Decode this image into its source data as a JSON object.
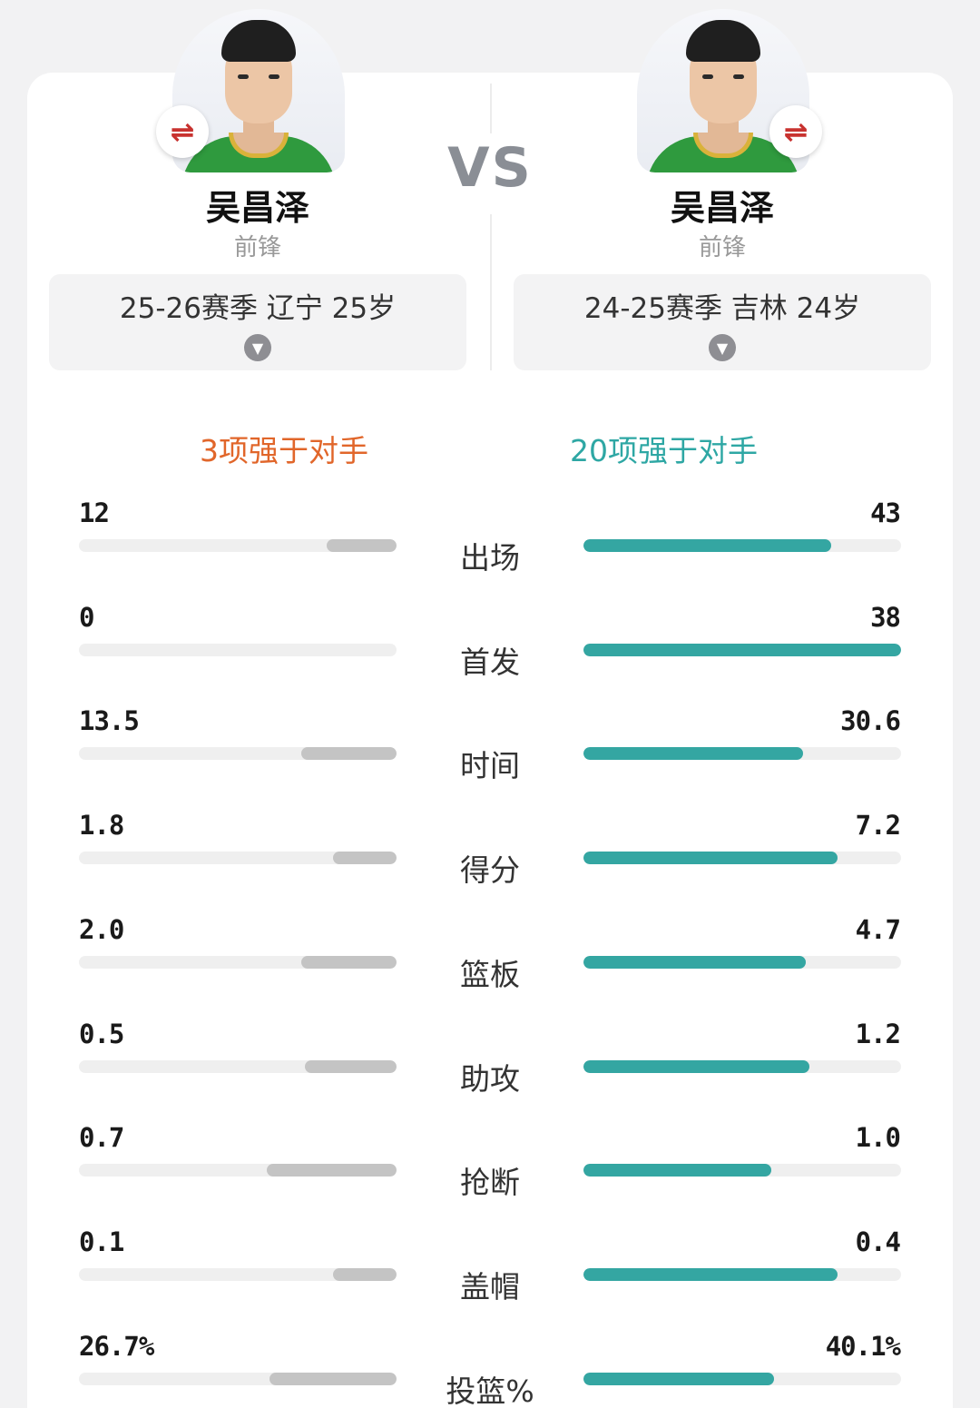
{
  "players": [
    {
      "name": "吴昌泽",
      "position": "前锋",
      "season": "25-26赛季 辽宁 25岁",
      "summary": "3项强于对手"
    },
    {
      "name": "吴昌泽",
      "position": "前锋",
      "season": "24-25赛季 吉林 24岁",
      "summary": "20项强于对手"
    }
  ],
  "vs_label": "VS",
  "swap_symbol": "⇌",
  "colors": {
    "left_accent": "#e1662a",
    "right_accent": "#2ea7a4",
    "left_bar": "#c4c4c4",
    "right_bar": "#34a6a2"
  },
  "icons": {
    "swap": "swap-icon",
    "dropdown": "chevron-down-icon"
  },
  "stats": [
    {
      "label": "出场",
      "left": "12",
      "right": "43",
      "left_fill": 0.22,
      "right_fill": 0.78
    },
    {
      "label": "首发",
      "left": "0",
      "right": "38",
      "left_fill": 0.0,
      "right_fill": 1.0
    },
    {
      "label": "时间",
      "left": "13.5",
      "right": "30.6",
      "left_fill": 0.3,
      "right_fill": 0.69
    },
    {
      "label": "得分",
      "left": "1.8",
      "right": "7.2",
      "left_fill": 0.2,
      "right_fill": 0.8
    },
    {
      "label": "篮板",
      "left": "2.0",
      "right": "4.7",
      "left_fill": 0.3,
      "right_fill": 0.7
    },
    {
      "label": "助攻",
      "left": "0.5",
      "right": "1.2",
      "left_fill": 0.29,
      "right_fill": 0.71
    },
    {
      "label": "抢断",
      "left": "0.7",
      "right": "1.0",
      "left_fill": 0.41,
      "right_fill": 0.59
    },
    {
      "label": "盖帽",
      "left": "0.1",
      "right": "0.4",
      "left_fill": 0.2,
      "right_fill": 0.8
    },
    {
      "label": "投篮%",
      "left": "26.7%",
      "right": "40.1%",
      "left_fill": 0.4,
      "right_fill": 0.6
    }
  ]
}
